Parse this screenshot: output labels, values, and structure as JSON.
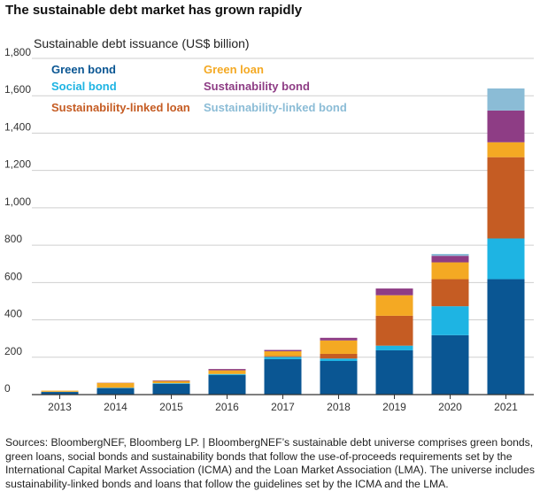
{
  "chart_data": {
    "type": "bar",
    "stacked": true,
    "title": "The sustainable debt market has grown rapidly",
    "ylabel": "Sustainable debt issuance (US$ billion)",
    "xlabel": "",
    "categories": [
      "2013",
      "2014",
      "2015",
      "2016",
      "2017",
      "2018",
      "2019",
      "2020",
      "2021"
    ],
    "ylim": [
      0,
      1800
    ],
    "yticks": [
      0,
      200,
      400,
      600,
      800,
      1000,
      1200,
      1400,
      1600,
      1800
    ],
    "ytick_labels": [
      "0",
      "200",
      "400",
      "600",
      "800",
      "1,000",
      "1,200",
      "1,400",
      "1,600",
      "1,800"
    ],
    "grid": true,
    "legend_position": "top-left",
    "series": [
      {
        "name": "Green bond",
        "color": "#0a5693",
        "values": [
          14,
          35,
          58,
          105,
          190,
          180,
          237,
          318,
          618
        ]
      },
      {
        "name": "Social bond",
        "color": "#1eb4e3",
        "values": [
          1,
          2,
          3,
          5,
          12,
          13,
          25,
          155,
          218
        ]
      },
      {
        "name": "Sustainability-linked loan",
        "color": "#c55c23",
        "values": [
          0,
          0,
          0,
          0,
          5,
          25,
          160,
          145,
          435
        ]
      },
      {
        "name": "Green loan",
        "color": "#f4a923",
        "values": [
          6,
          26,
          12,
          20,
          25,
          72,
          110,
          90,
          80
        ]
      },
      {
        "name": "Sustainability bond",
        "color": "#8e3d85",
        "values": [
          0,
          1,
          3,
          7,
          7,
          14,
          36,
          35,
          170
        ]
      },
      {
        "name": "Sustainability-linked bond",
        "color": "#8bbcd6",
        "values": [
          0,
          0,
          0,
          0,
          0,
          0,
          0,
          10,
          118
        ]
      }
    ]
  },
  "source_note": "Sources: BloombergNEF, Bloomberg LP.  |  BloombergNEF’s sustainable debt universe comprises green bonds, green loans, social bonds and sustainability bonds that follow the use-of-proceeds requirements set by the International Capital Market Association (ICMA) and the Loan Market Association (LMA). The universe includes sustainability-linked bonds and loans that follow the guidelines set by the ICMA and the LMA."
}
